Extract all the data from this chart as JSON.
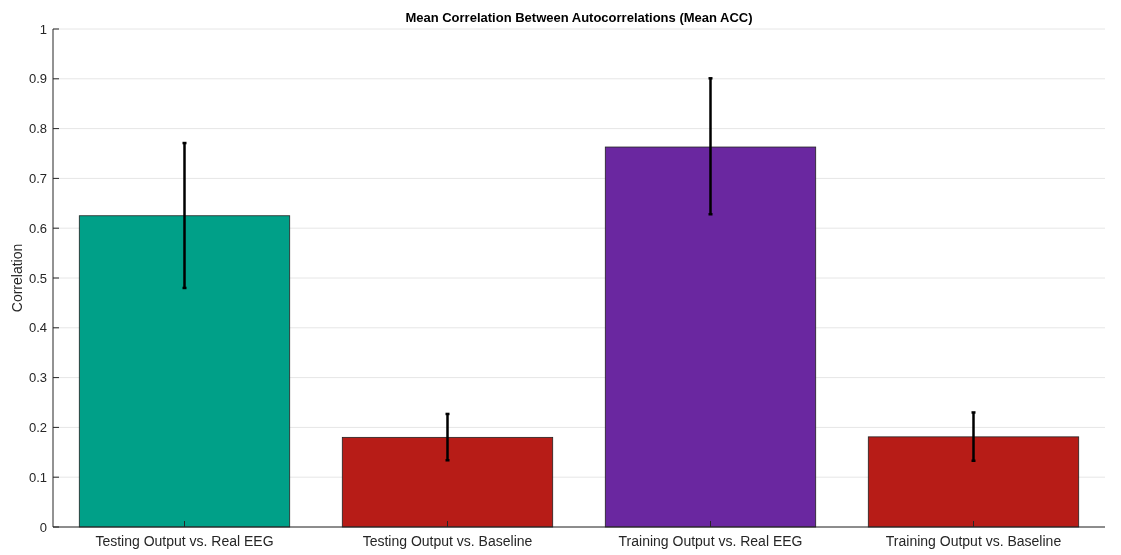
{
  "chart_data": {
    "type": "bar",
    "title": "Mean Correlation Between Autocorrelations (Mean ACC)",
    "ylabel": "Correlation",
    "categories": [
      "Testing Output vs. Real EEG",
      "Testing Output vs. Baseline",
      "Training Output vs. Real EEG",
      "Training Output vs. Baseline"
    ],
    "values": [
      0.625,
      0.18,
      0.763,
      0.181
    ],
    "colors": [
      "#00a088",
      "#b71c17",
      "#6a27a0",
      "#b71c17"
    ],
    "errors": [
      [
        0.48,
        0.771
      ],
      [
        0.134,
        0.227
      ],
      [
        0.628,
        0.901
      ],
      [
        0.133,
        0.23
      ]
    ],
    "ylim": [
      0,
      1
    ],
    "yticks": [
      0,
      0.1,
      0.2,
      0.3,
      0.4,
      0.5,
      0.6,
      0.7,
      0.8,
      0.9,
      1
    ],
    "grid": "y"
  }
}
